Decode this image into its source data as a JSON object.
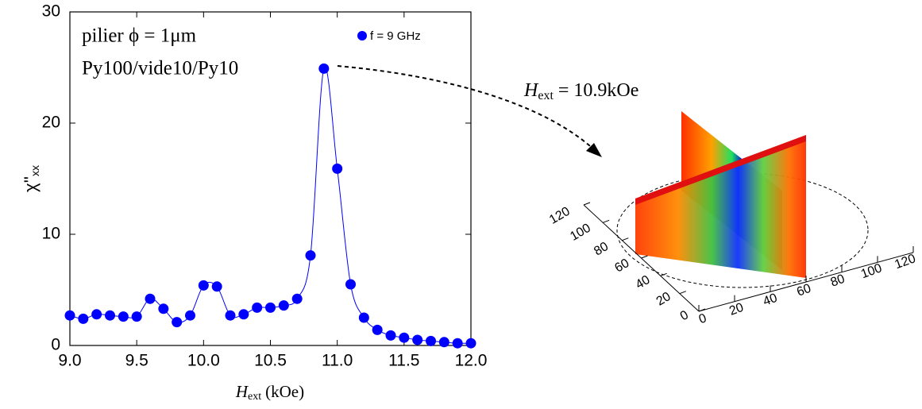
{
  "chart_data": {
    "type": "scatter",
    "x_label": {
      "symbol": "H",
      "sub": "ext",
      "rest": "(kOe)"
    },
    "y_label": {
      "symbol": "χ''",
      "sub": "xx"
    },
    "annotations": [
      "pilier ϕ = 1μm",
      "Py100/vide10/Py10"
    ],
    "x": [
      9.0,
      9.1,
      9.2,
      9.3,
      9.4,
      9.5,
      9.6,
      9.7,
      9.8,
      9.9,
      10.0,
      10.1,
      10.2,
      10.3,
      10.4,
      10.5,
      10.6,
      10.7,
      10.8,
      10.9,
      11.0,
      11.1,
      11.2,
      11.3,
      11.4,
      11.5,
      11.6,
      11.7,
      11.8,
      11.9,
      12.0
    ],
    "series": [
      {
        "name": "f = 9 GHz",
        "color": "#0000ff",
        "values": [
          2.7,
          2.4,
          2.8,
          2.7,
          2.6,
          2.6,
          4.2,
          3.3,
          2.1,
          2.7,
          5.4,
          5.3,
          2.7,
          2.8,
          3.4,
          3.4,
          3.6,
          4.2,
          8.1,
          24.9,
          15.9,
          5.5,
          2.5,
          1.4,
          0.9,
          0.7,
          0.5,
          0.4,
          0.3,
          0.2,
          0.2
        ]
      }
    ],
    "xlim": [
      9.0,
      12.0
    ],
    "xticks": [
      {
        "value": 9,
        "label": "9.0"
      },
      {
        "value": 9.5,
        "label": "9.5"
      },
      {
        "value": 10,
        "label": "10.0"
      },
      {
        "value": 10.5,
        "label": "10.5"
      },
      {
        "value": 11,
        "label": "11.0"
      },
      {
        "value": 11.5,
        "label": "11.5"
      },
      {
        "value": 12,
        "label": "12.0"
      }
    ],
    "ylim": [
      0,
      30
    ],
    "yticks": [
      0,
      10,
      20,
      30
    ],
    "legend": "upper right"
  },
  "inset": {
    "label": {
      "symbol": "H",
      "sub": "ext",
      "rest": "= 10.9kOe"
    },
    "y_ticks": [
      0,
      20,
      40,
      60,
      80,
      100,
      120
    ],
    "x_ticks": [
      0,
      20,
      40,
      60,
      80,
      100,
      120
    ]
  }
}
